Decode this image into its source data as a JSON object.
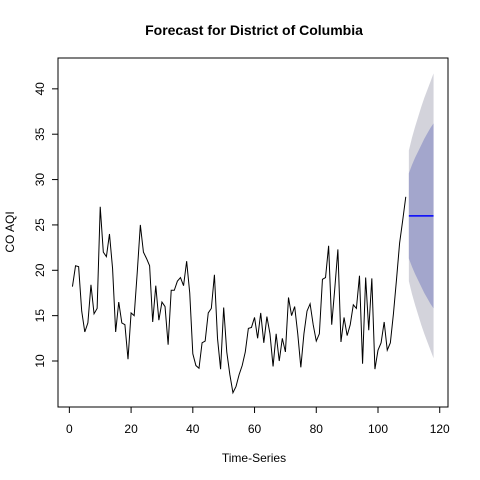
{
  "chart_data": {
    "type": "line",
    "title": "Forecast for District of Columbia",
    "xlabel": "Time-Series",
    "ylabel": "CO AQI",
    "xlim": [
      -3.68,
      122.68
    ],
    "ylim": [
      4.93,
      43.4
    ],
    "xticks": [
      0,
      20,
      40,
      60,
      80,
      100,
      120
    ],
    "yticks": [
      10,
      15,
      20,
      25,
      30,
      35,
      40
    ],
    "x": [
      1,
      2,
      3,
      4,
      5,
      6,
      7,
      8,
      9,
      10,
      11,
      12,
      13,
      14,
      15,
      16,
      17,
      18,
      19,
      20,
      21,
      22,
      23,
      24,
      25,
      26,
      27,
      28,
      29,
      30,
      31,
      32,
      33,
      34,
      35,
      36,
      37,
      38,
      39,
      40,
      41,
      42,
      43,
      44,
      45,
      46,
      47,
      48,
      49,
      50,
      51,
      52,
      53,
      54,
      55,
      56,
      57,
      58,
      59,
      60,
      61,
      62,
      63,
      64,
      65,
      66,
      67,
      68,
      69,
      70,
      71,
      72,
      73,
      74,
      75,
      76,
      77,
      78,
      79,
      80,
      81,
      82,
      83,
      84,
      85,
      86,
      87,
      88,
      89,
      90,
      91,
      92,
      93,
      94,
      95,
      96,
      97,
      98,
      99,
      100,
      101,
      102,
      103,
      104,
      105,
      106,
      107,
      108,
      109
    ],
    "series": [
      {
        "color": "#000000",
        "values": [
          18.2,
          20.5,
          20.4,
          15.5,
          13.2,
          14.2,
          18.4,
          15.2,
          15.8,
          27,
          22,
          21.5,
          24,
          20.2,
          13.2,
          16.5,
          14.2,
          14,
          10.2,
          15.3,
          15,
          19.8,
          25,
          22,
          21.3,
          20.5,
          14.3,
          18.3,
          14.5,
          16.5,
          16,
          11.8,
          17.8,
          17.8,
          18.8,
          19.2,
          18.3,
          21,
          17.5,
          10.8,
          9.5,
          9.2,
          12,
          12.2,
          15.3,
          15.8,
          19.5,
          12.5,
          9.1,
          15.9,
          11,
          8.5,
          6.5,
          7.2,
          8.5,
          9.5,
          11,
          13.6,
          13.7,
          14.8,
          12.5,
          15.3,
          12,
          14.9,
          13,
          9.4,
          13,
          10,
          12.5,
          11,
          17,
          15,
          16,
          13,
          9.3,
          13,
          15.5,
          16.3,
          14,
          12.2,
          13,
          19,
          19.2,
          22.7,
          14,
          18,
          22.3,
          12.1,
          14.8,
          12.8,
          14,
          16.2,
          15.8,
          19.4,
          9.7,
          19.2,
          13.4,
          19.1,
          9.1,
          11.2,
          12,
          14.3,
          11.2,
          12,
          15.2,
          19,
          23,
          25.5,
          28.1
        ]
      }
    ],
    "forecast": {
      "x": [
        110,
        111,
        112,
        113,
        114,
        115,
        116,
        117,
        118
      ],
      "mean": [
        26,
        26,
        26,
        26,
        26,
        26,
        26,
        26,
        26
      ],
      "mean_color": "#0000ff",
      "lower80": [
        21.3,
        20.4,
        19.6,
        18.9,
        18.2,
        17.5,
        16.9,
        16.3,
        15.8
      ],
      "upper80": [
        30.7,
        31.6,
        32.4,
        33.1,
        33.8,
        34.5,
        35.1,
        35.7,
        36.2
      ],
      "color80": "#a3a6cc",
      "lower95": [
        18.8,
        17.4,
        16.2,
        15.1,
        14,
        13,
        12.1,
        11.2,
        10.3
      ],
      "upper95": [
        33.2,
        34.6,
        35.8,
        36.9,
        38,
        39,
        39.9,
        40.8,
        41.7
      ],
      "color95": "#d3d3db"
    }
  }
}
